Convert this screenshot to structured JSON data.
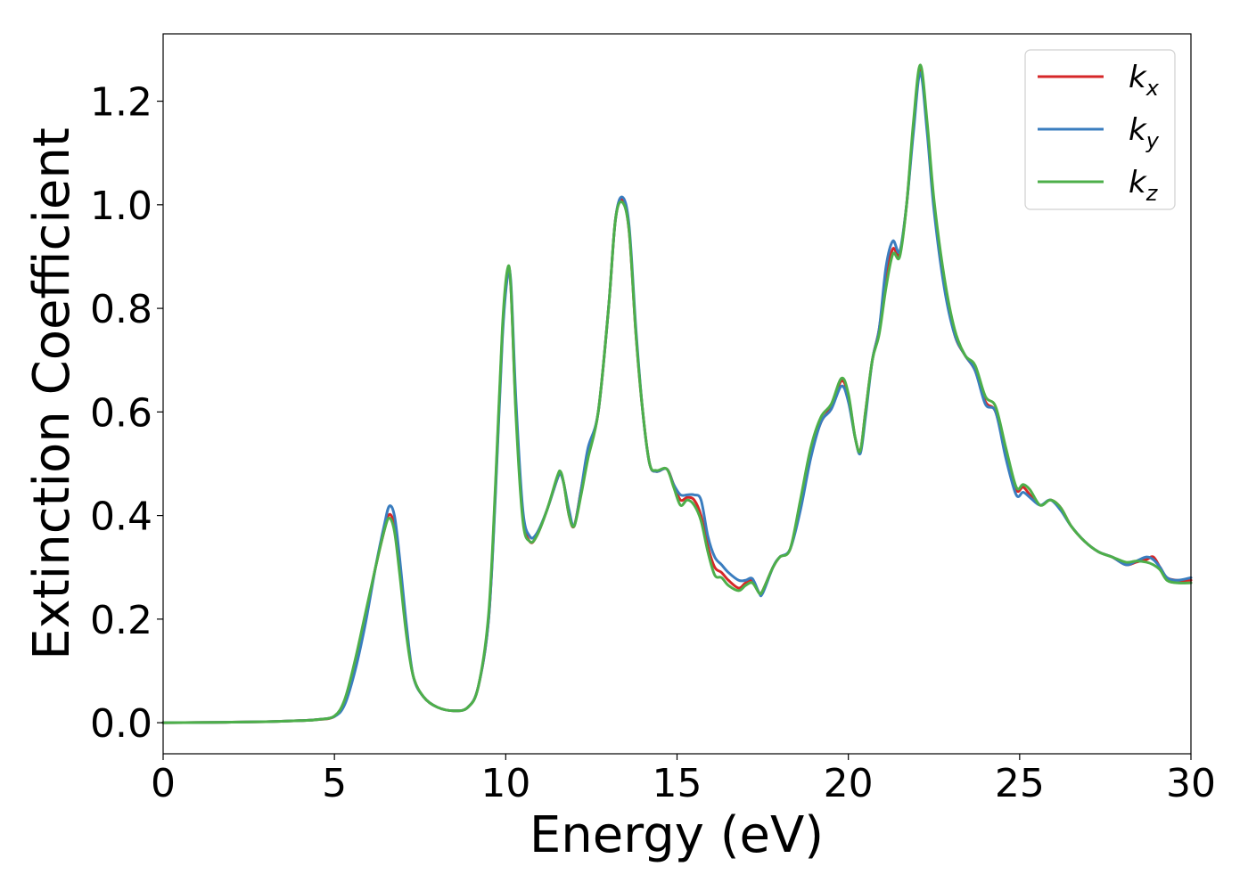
{
  "chart_data": {
    "type": "line",
    "title": "",
    "xlabel": "Energy (eV)",
    "ylabel": "Extinction Coefficient",
    "xlim": [
      0,
      30
    ],
    "ylim": [
      -0.06,
      1.33
    ],
    "xticks": [
      0,
      5,
      10,
      15,
      20,
      25,
      30
    ],
    "yticks": [
      0.0,
      0.2,
      0.4,
      0.6,
      0.8,
      1.0,
      1.2
    ],
    "xtick_labels": [
      "0",
      "5",
      "10",
      "15",
      "20",
      "25",
      "30"
    ],
    "ytick_labels": [
      "0.0",
      "0.2",
      "0.4",
      "0.6",
      "0.8",
      "1.0",
      "1.2"
    ],
    "grid": false,
    "legend_position": "top-right",
    "series": [
      {
        "name": "k_x",
        "label_base": "k",
        "label_sub": "x",
        "color": "#d62728",
        "x": [
          0,
          1,
          2,
          3,
          4,
          4.5,
          5,
          5.3,
          5.6,
          5.9,
          6.2,
          6.45,
          6.6,
          6.75,
          6.9,
          7.1,
          7.3,
          7.6,
          8,
          8.5,
          8.9,
          9.2,
          9.5,
          9.7,
          9.9,
          10.05,
          10.15,
          10.3,
          10.5,
          10.7,
          10.9,
          11.2,
          11.5,
          11.6,
          11.7,
          11.85,
          12,
          12.2,
          12.4,
          12.7,
          13,
          13.2,
          13.4,
          13.6,
          13.8,
          14.0,
          14.2,
          14.4,
          14.7,
          14.9,
          15.1,
          15.3,
          15.5,
          15.7,
          15.9,
          16.1,
          16.3,
          16.5,
          16.8,
          17.0,
          17.2,
          17.4,
          17.5,
          17.8,
          18,
          18.3,
          18.6,
          18.9,
          19.2,
          19.5,
          19.8,
          20.0,
          20.2,
          20.35,
          20.5,
          20.7,
          20.9,
          21.1,
          21.3,
          21.5,
          21.7,
          21.9,
          22.1,
          22.3,
          22.5,
          22.8,
          23.1,
          23.4,
          23.7,
          24.0,
          24.3,
          24.6,
          24.9,
          25.1,
          25.3,
          25.6,
          25.9,
          26.2,
          26.5,
          26.9,
          27.3,
          27.7,
          28.1,
          28.4,
          28.7,
          28.9,
          29.1,
          29.3,
          29.6,
          30
        ],
        "values": [
          0.0,
          0.0005,
          0.001,
          0.002,
          0.004,
          0.006,
          0.012,
          0.04,
          0.11,
          0.2,
          0.3,
          0.37,
          0.402,
          0.38,
          0.3,
          0.18,
          0.09,
          0.05,
          0.03,
          0.023,
          0.03,
          0.07,
          0.2,
          0.45,
          0.75,
          0.87,
          0.84,
          0.6,
          0.4,
          0.35,
          0.36,
          0.41,
          0.47,
          0.48,
          0.46,
          0.4,
          0.38,
          0.45,
          0.52,
          0.6,
          0.8,
          0.97,
          1.01,
          0.95,
          0.75,
          0.6,
          0.5,
          0.485,
          0.49,
          0.46,
          0.43,
          0.435,
          0.43,
          0.4,
          0.34,
          0.3,
          0.29,
          0.275,
          0.26,
          0.27,
          0.275,
          0.25,
          0.255,
          0.3,
          0.32,
          0.335,
          0.42,
          0.52,
          0.58,
          0.61,
          0.66,
          0.63,
          0.55,
          0.525,
          0.6,
          0.7,
          0.76,
          0.86,
          0.915,
          0.905,
          1.0,
          1.15,
          1.265,
          1.15,
          1.0,
          0.85,
          0.75,
          0.71,
          0.68,
          0.62,
          0.6,
          0.52,
          0.45,
          0.455,
          0.44,
          0.42,
          0.43,
          0.415,
          0.38,
          0.35,
          0.33,
          0.32,
          0.305,
          0.31,
          0.315,
          0.32,
          0.3,
          0.28,
          0.275,
          0.275
        ]
      },
      {
        "name": "k_y",
        "label_base": "k",
        "label_sub": "y",
        "color": "#3a7dbf",
        "x": [
          0,
          1,
          2,
          3,
          4,
          4.5,
          5,
          5.3,
          5.6,
          5.9,
          6.2,
          6.45,
          6.6,
          6.75,
          6.9,
          7.1,
          7.3,
          7.6,
          8,
          8.5,
          8.9,
          9.2,
          9.5,
          9.7,
          9.9,
          10.05,
          10.15,
          10.3,
          10.5,
          10.7,
          10.9,
          11.2,
          11.5,
          11.6,
          11.7,
          11.85,
          12,
          12.2,
          12.4,
          12.7,
          13,
          13.2,
          13.4,
          13.6,
          13.8,
          14.0,
          14.2,
          14.4,
          14.7,
          14.9,
          15.1,
          15.3,
          15.5,
          15.7,
          15.9,
          16.1,
          16.3,
          16.5,
          16.8,
          17.0,
          17.2,
          17.4,
          17.5,
          17.8,
          18,
          18.3,
          18.6,
          18.9,
          19.2,
          19.5,
          19.8,
          20.0,
          20.2,
          20.35,
          20.5,
          20.7,
          20.9,
          21.1,
          21.3,
          21.5,
          21.7,
          21.9,
          22.1,
          22.3,
          22.5,
          22.8,
          23.1,
          23.4,
          23.7,
          24.0,
          24.3,
          24.6,
          24.9,
          25.1,
          25.3,
          25.6,
          25.9,
          26.2,
          26.5,
          26.9,
          27.3,
          27.7,
          28.1,
          28.4,
          28.7,
          28.9,
          29.1,
          29.3,
          29.6,
          30
        ],
        "values": [
          0.0,
          0.0005,
          0.001,
          0.002,
          0.004,
          0.006,
          0.012,
          0.035,
          0.1,
          0.19,
          0.3,
          0.38,
          0.418,
          0.4,
          0.32,
          0.19,
          0.09,
          0.05,
          0.03,
          0.023,
          0.03,
          0.07,
          0.2,
          0.44,
          0.74,
          0.86,
          0.85,
          0.62,
          0.41,
          0.36,
          0.365,
          0.41,
          0.47,
          0.48,
          0.46,
          0.41,
          0.38,
          0.45,
          0.53,
          0.6,
          0.8,
          0.97,
          1.015,
          0.96,
          0.76,
          0.6,
          0.5,
          0.485,
          0.49,
          0.46,
          0.44,
          0.44,
          0.44,
          0.43,
          0.36,
          0.32,
          0.305,
          0.29,
          0.275,
          0.275,
          0.278,
          0.25,
          0.25,
          0.3,
          0.32,
          0.335,
          0.41,
          0.51,
          0.58,
          0.605,
          0.65,
          0.62,
          0.55,
          0.52,
          0.59,
          0.7,
          0.76,
          0.88,
          0.93,
          0.91,
          1.0,
          1.14,
          1.255,
          1.14,
          0.99,
          0.84,
          0.75,
          0.71,
          0.68,
          0.615,
          0.6,
          0.51,
          0.44,
          0.445,
          0.435,
          0.42,
          0.43,
          0.41,
          0.38,
          0.35,
          0.33,
          0.32,
          0.305,
          0.312,
          0.32,
          0.315,
          0.3,
          0.28,
          0.275,
          0.28
        ]
      },
      {
        "name": "k_z",
        "label_base": "k",
        "label_sub": "z",
        "color": "#4daf4a",
        "x": [
          0,
          1,
          2,
          3,
          4,
          4.5,
          5,
          5.3,
          5.6,
          5.9,
          6.2,
          6.45,
          6.6,
          6.75,
          6.9,
          7.1,
          7.3,
          7.6,
          8,
          8.5,
          8.9,
          9.2,
          9.5,
          9.7,
          9.9,
          10.05,
          10.15,
          10.3,
          10.5,
          10.7,
          10.9,
          11.2,
          11.5,
          11.6,
          11.7,
          11.85,
          12,
          12.2,
          12.4,
          12.7,
          13,
          13.2,
          13.4,
          13.6,
          13.8,
          14.0,
          14.2,
          14.4,
          14.7,
          14.9,
          15.1,
          15.3,
          15.5,
          15.7,
          15.9,
          16.1,
          16.3,
          16.5,
          16.8,
          17.0,
          17.2,
          17.4,
          17.5,
          17.8,
          18,
          18.3,
          18.6,
          18.9,
          19.2,
          19.5,
          19.8,
          20.0,
          20.2,
          20.35,
          20.5,
          20.7,
          20.9,
          21.1,
          21.3,
          21.5,
          21.7,
          21.9,
          22.1,
          22.3,
          22.5,
          22.8,
          23.1,
          23.4,
          23.7,
          24.0,
          24.3,
          24.6,
          24.9,
          25.1,
          25.3,
          25.6,
          25.9,
          26.2,
          26.5,
          26.9,
          27.3,
          27.7,
          28.1,
          28.4,
          28.7,
          28.9,
          29.1,
          29.3,
          29.6,
          30
        ],
        "values": [
          0.0,
          0.0005,
          0.001,
          0.002,
          0.004,
          0.006,
          0.013,
          0.045,
          0.12,
          0.21,
          0.3,
          0.37,
          0.395,
          0.37,
          0.29,
          0.17,
          0.09,
          0.05,
          0.03,
          0.023,
          0.03,
          0.07,
          0.21,
          0.46,
          0.76,
          0.875,
          0.84,
          0.59,
          0.39,
          0.35,
          0.36,
          0.41,
          0.475,
          0.485,
          0.46,
          0.4,
          0.38,
          0.44,
          0.51,
          0.6,
          0.8,
          0.97,
          1.005,
          0.95,
          0.75,
          0.6,
          0.5,
          0.487,
          0.49,
          0.455,
          0.42,
          0.43,
          0.42,
          0.39,
          0.33,
          0.285,
          0.28,
          0.265,
          0.255,
          0.265,
          0.27,
          0.25,
          0.255,
          0.3,
          0.32,
          0.335,
          0.43,
          0.53,
          0.59,
          0.615,
          0.665,
          0.635,
          0.55,
          0.525,
          0.6,
          0.7,
          0.75,
          0.84,
          0.905,
          0.9,
          1.0,
          1.16,
          1.27,
          1.16,
          1.01,
          0.86,
          0.76,
          0.71,
          0.69,
          0.63,
          0.61,
          0.53,
          0.455,
          0.46,
          0.45,
          0.42,
          0.43,
          0.415,
          0.38,
          0.35,
          0.33,
          0.32,
          0.31,
          0.312,
          0.31,
          0.305,
          0.295,
          0.275,
          0.27,
          0.27
        ]
      }
    ]
  }
}
